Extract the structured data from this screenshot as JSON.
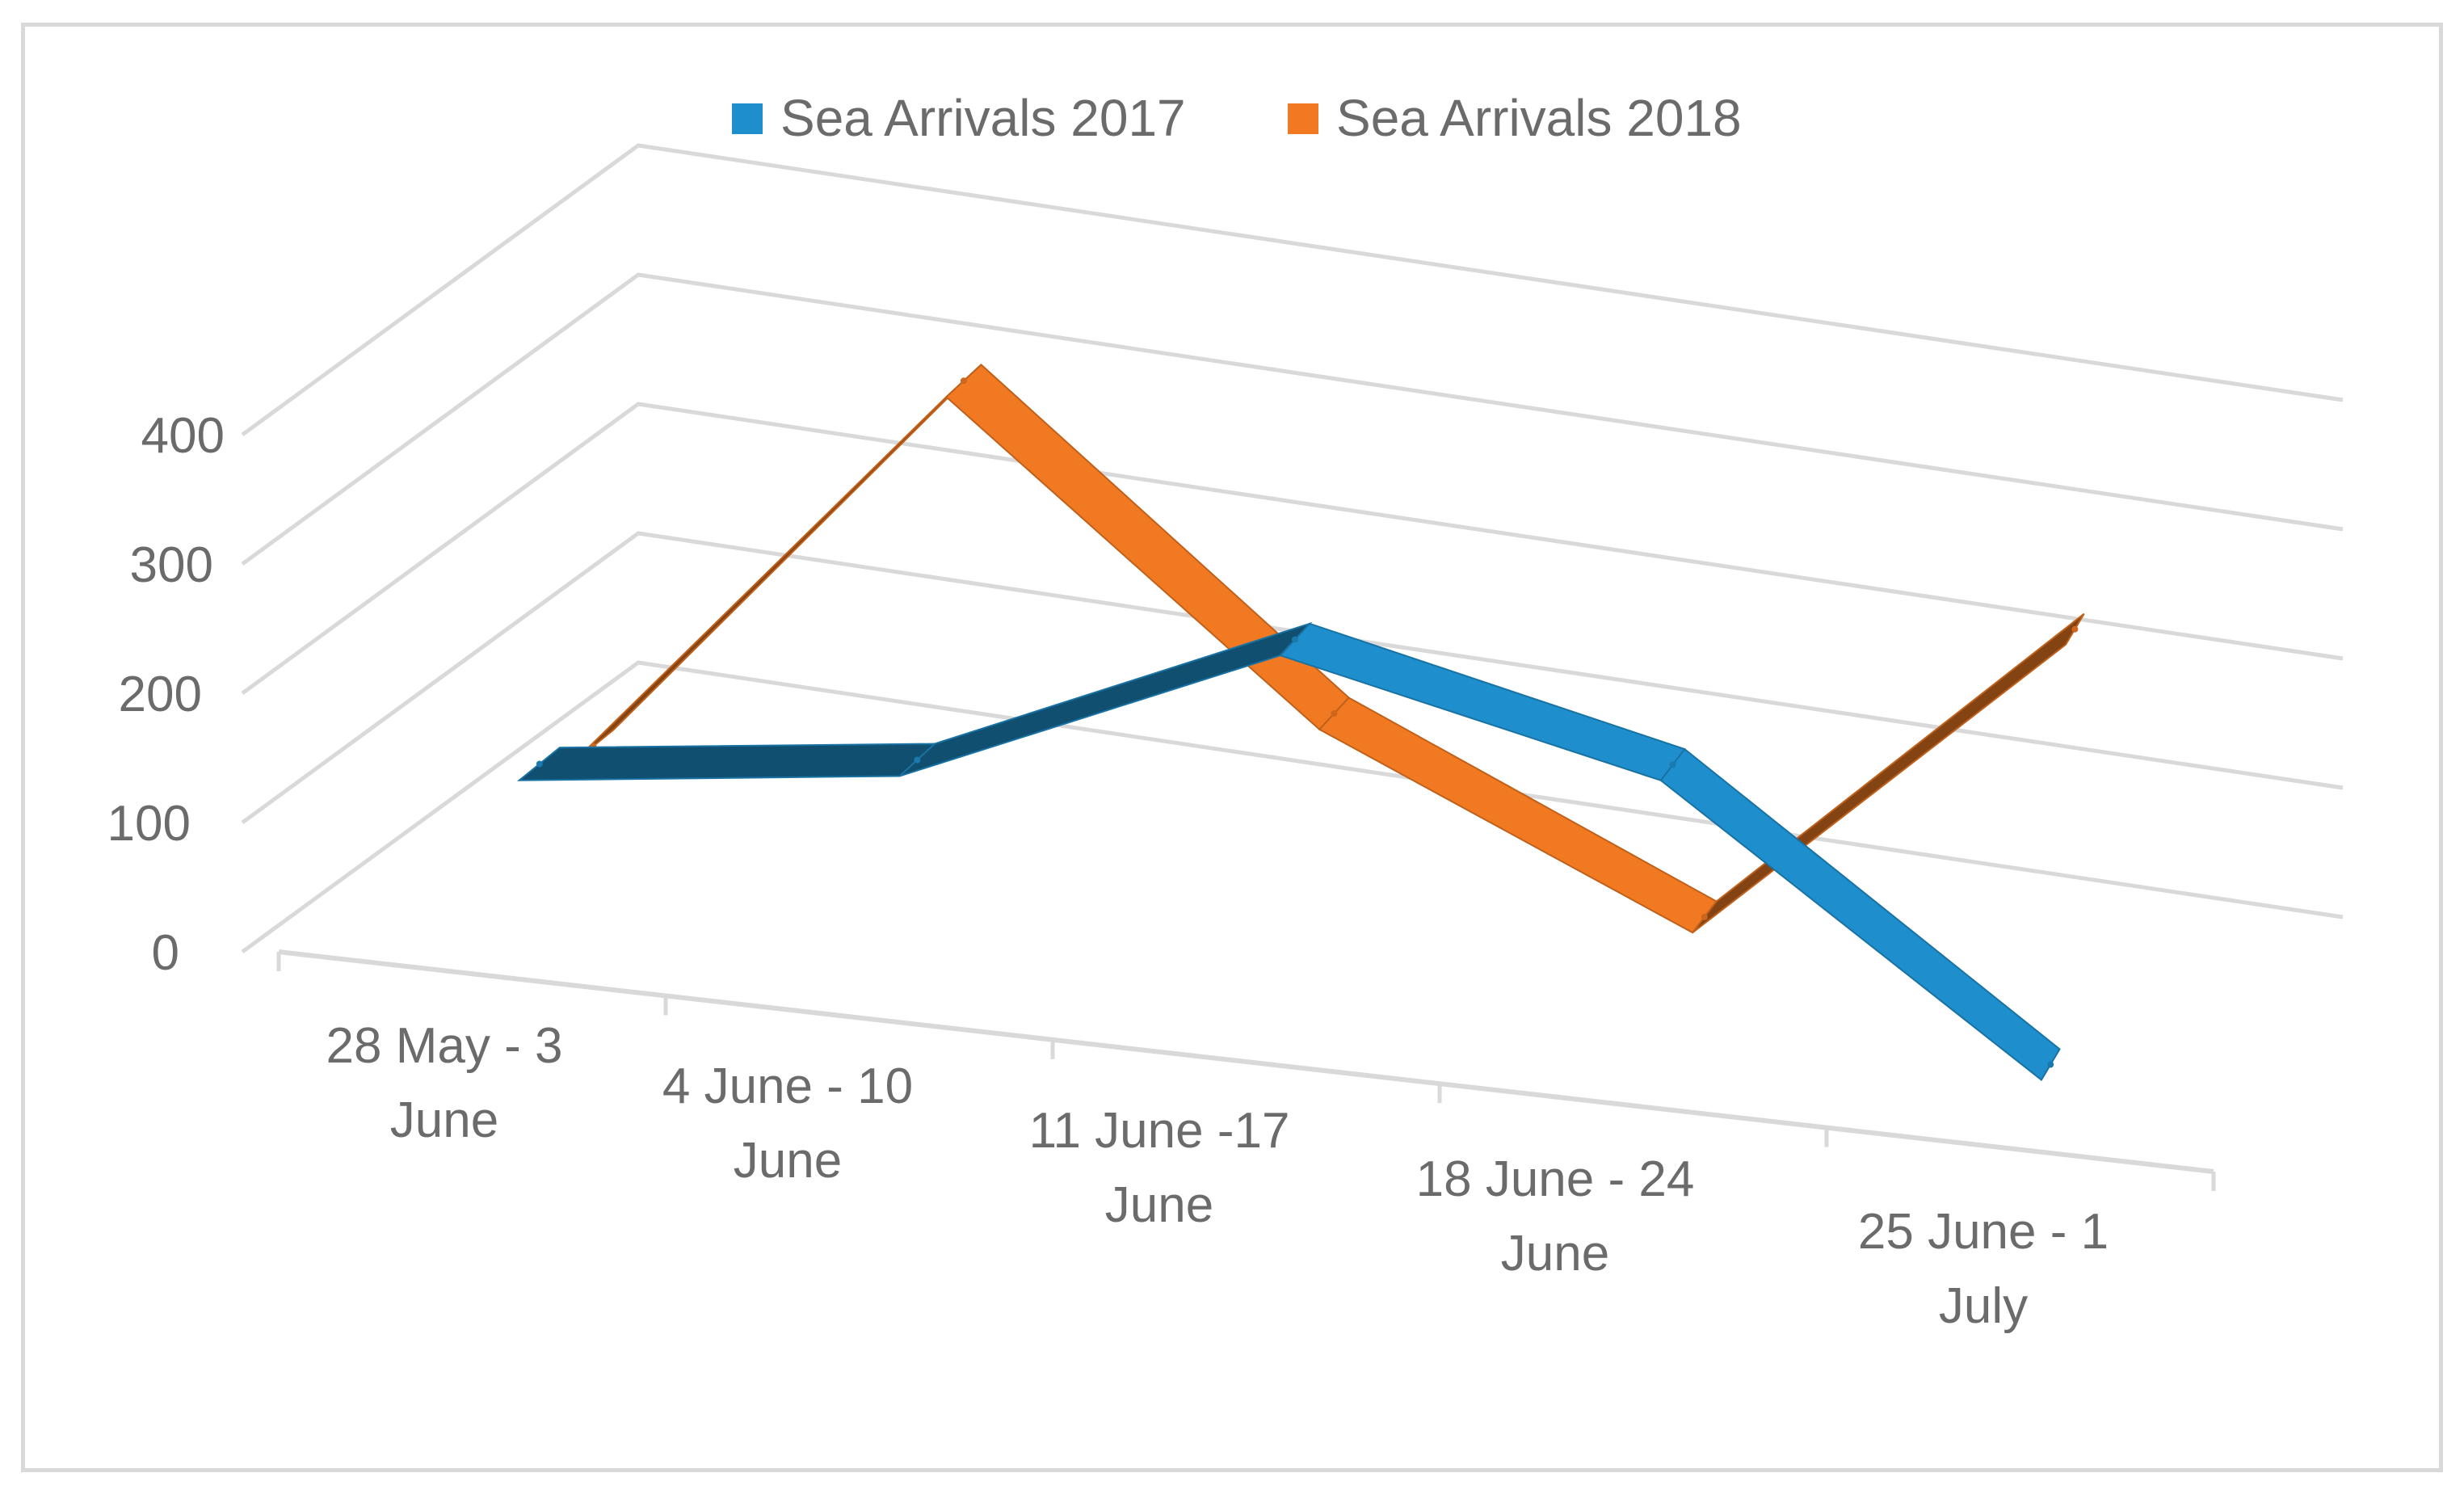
{
  "chart_data": {
    "type": "line",
    "style": "3d-ribbon",
    "categories": [
      "28 May - 3 June",
      "4 June - 10 June",
      "11 June -17 June",
      "18 June - 24 June",
      "25 June - 1 July"
    ],
    "category_lines": [
      [
        "28 May - 3",
        "June"
      ],
      [
        "4 June - 10",
        "June"
      ],
      [
        "11 June -17",
        "June"
      ],
      [
        "18 June - 24",
        "June"
      ],
      [
        "25 June - 1",
        "July"
      ]
    ],
    "series": [
      {
        "name": "Sea Arrivals 2017",
        "color": "#1e8fcc",
        "values": [
          110,
          150,
          280,
          220,
          25
        ]
      },
      {
        "name": "Sea Arrivals 2018",
        "color": "#f07922",
        "values": [
          90,
          410,
          190,
          70,
          330
        ]
      }
    ],
    "yticks": [
      0,
      100,
      200,
      300,
      400
    ],
    "ylim": [
      0,
      400
    ],
    "grid": true,
    "legend": "top-center",
    "title": "",
    "xlabel": "",
    "ylabel": ""
  }
}
